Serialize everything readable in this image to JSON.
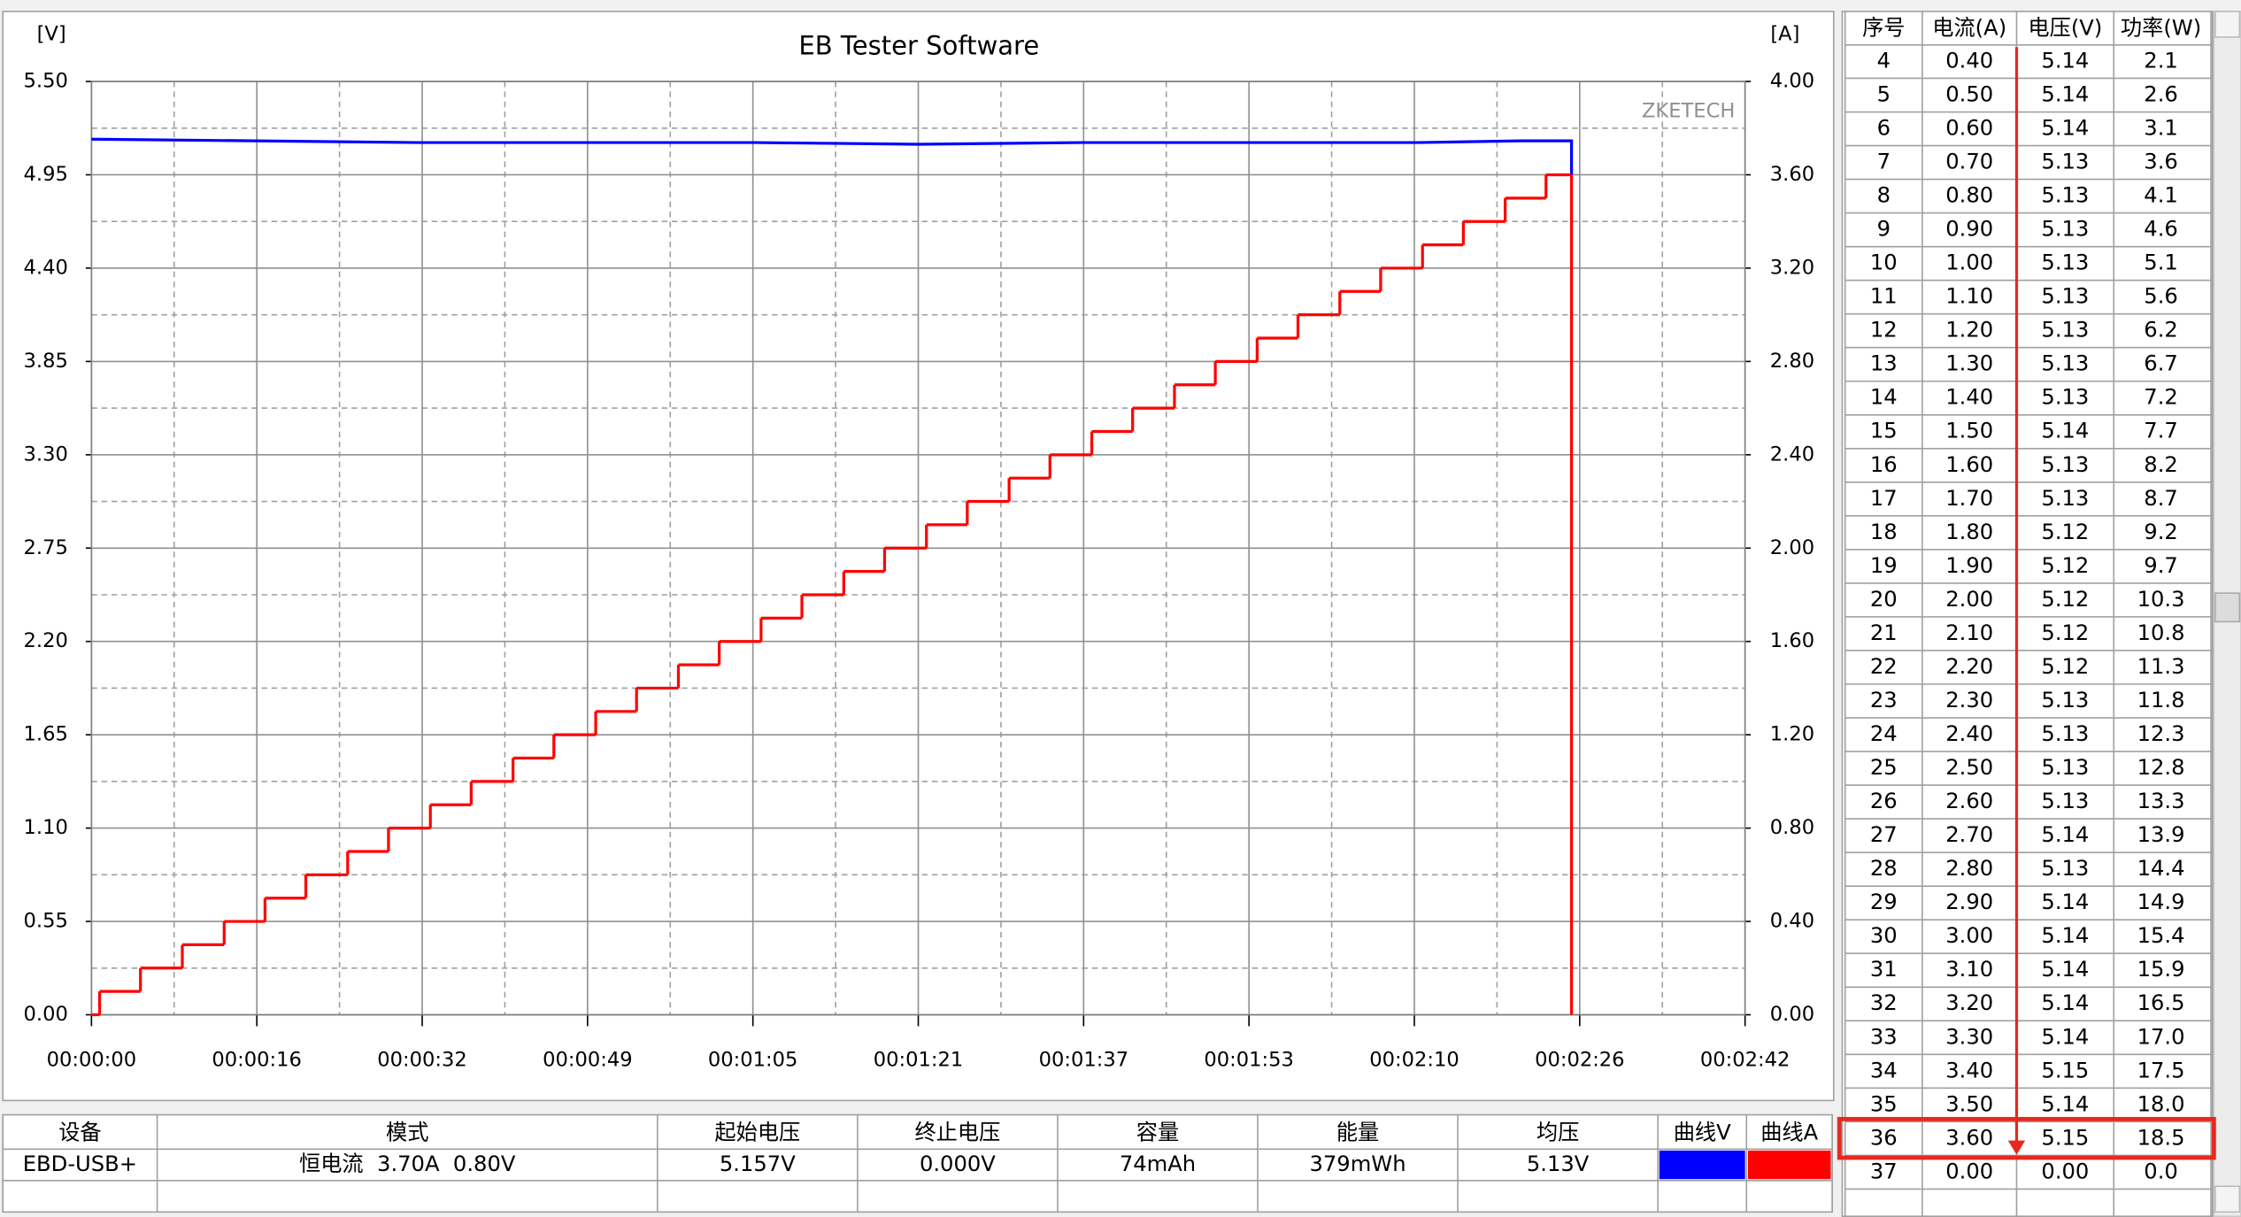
{
  "chart_data": {
    "type": "line",
    "title": "EB Tester Software",
    "y_label": "[V]",
    "y2_label": "[A]",
    "watermark": "ZKETECH",
    "xlim": [
      0,
      162
    ],
    "xticks": [
      {
        "value": 0,
        "label": "00:00:00"
      },
      {
        "value": 16.2,
        "label": "00:00:16"
      },
      {
        "value": 32.4,
        "label": "00:00:32"
      },
      {
        "value": 48.6,
        "label": "00:00:49"
      },
      {
        "value": 64.8,
        "label": "00:01:05"
      },
      {
        "value": 81,
        "label": "00:01:21"
      },
      {
        "value": 97.2,
        "label": "00:01:37"
      },
      {
        "value": 113.4,
        "label": "00:01:53"
      },
      {
        "value": 129.6,
        "label": "00:02:10"
      },
      {
        "value": 145.8,
        "label": "00:02:26"
      },
      {
        "value": 162,
        "label": "00:02:42"
      }
    ],
    "ylim": [
      0,
      5.5
    ],
    "yticks": [
      {
        "value": 0,
        "label": "0.00"
      },
      {
        "value": 0.55,
        "label": "0.55"
      },
      {
        "value": 1.1,
        "label": "1.10"
      },
      {
        "value": 1.65,
        "label": "1.65"
      },
      {
        "value": 2.2,
        "label": "2.20"
      },
      {
        "value": 2.75,
        "label": "2.75"
      },
      {
        "value": 3.3,
        "label": "3.30"
      },
      {
        "value": 3.85,
        "label": "3.85"
      },
      {
        "value": 4.4,
        "label": "4.40"
      },
      {
        "value": 4.95,
        "label": "4.95"
      },
      {
        "value": 5.5,
        "label": "5.50"
      }
    ],
    "y2lim": [
      0,
      4
    ],
    "y2ticks": [
      {
        "value": 0,
        "label": "0.00"
      },
      {
        "value": 0.4,
        "label": "0.40"
      },
      {
        "value": 0.8,
        "label": "0.80"
      },
      {
        "value": 1.2,
        "label": "1.20"
      },
      {
        "value": 1.6,
        "label": "1.60"
      },
      {
        "value": 2,
        "label": "2.00"
      },
      {
        "value": 2.4,
        "label": "2.40"
      },
      {
        "value": 2.8,
        "label": "2.80"
      },
      {
        "value": 3.2,
        "label": "3.20"
      },
      {
        "value": 3.6,
        "label": "3.60"
      },
      {
        "value": 4,
        "label": "4.00"
      }
    ],
    "grid": true,
    "series": [
      {
        "name": "曲线V",
        "color": "#0000ff",
        "axis": "y",
        "x": [
          0,
          16,
          32,
          49,
          65,
          81,
          97,
          113,
          130,
          140,
          145,
          145
        ],
        "values": [
          5.16,
          5.15,
          5.14,
          5.14,
          5.14,
          5.13,
          5.14,
          5.14,
          5.14,
          5.15,
          5.15,
          4.95
        ]
      },
      {
        "name": "曲线A",
        "color": "#ff0000",
        "axis": "y2",
        "drawstyle": "steps-post",
        "x": [
          0,
          0.8,
          4.8,
          8.9,
          13.0,
          17.0,
          21.0,
          25.1,
          29.1,
          33.2,
          37.2,
          41.3,
          45.3,
          49.4,
          53.4,
          57.5,
          61.5,
          65.6,
          69.6,
          73.7,
          77.7,
          81.8,
          85.8,
          89.9,
          93.9,
          98.0,
          102.0,
          106.1,
          110.1,
          114.2,
          118.2,
          122.3,
          126.3,
          130.4,
          134.4,
          138.5,
          142.5,
          145.0
        ],
        "values": [
          0,
          0.1,
          0.2,
          0.3,
          0.4,
          0.5,
          0.6,
          0.7,
          0.8,
          0.9,
          1.0,
          1.1,
          1.2,
          1.3,
          1.4,
          1.5,
          1.6,
          1.7,
          1.8,
          1.9,
          2.0,
          2.1,
          2.2,
          2.3,
          2.4,
          2.5,
          2.6,
          2.7,
          2.8,
          2.9,
          3.0,
          3.1,
          3.2,
          3.3,
          3.4,
          3.5,
          3.6,
          0
        ]
      }
    ]
  },
  "readings": {
    "headers": [
      "序号",
      "电流(A)",
      "电压(V)",
      "功率(W)"
    ],
    "rows": [
      [
        "4",
        "0.40",
        "5.14",
        "2.1"
      ],
      [
        "5",
        "0.50",
        "5.14",
        "2.6"
      ],
      [
        "6",
        "0.60",
        "5.14",
        "3.1"
      ],
      [
        "7",
        "0.70",
        "5.13",
        "3.6"
      ],
      [
        "8",
        "0.80",
        "5.13",
        "4.1"
      ],
      [
        "9",
        "0.90",
        "5.13",
        "4.6"
      ],
      [
        "10",
        "1.00",
        "5.13",
        "5.1"
      ],
      [
        "11",
        "1.10",
        "5.13",
        "5.6"
      ],
      [
        "12",
        "1.20",
        "5.13",
        "6.2"
      ],
      [
        "13",
        "1.30",
        "5.13",
        "6.7"
      ],
      [
        "14",
        "1.40",
        "5.13",
        "7.2"
      ],
      [
        "15",
        "1.50",
        "5.14",
        "7.7"
      ],
      [
        "16",
        "1.60",
        "5.13",
        "8.2"
      ],
      [
        "17",
        "1.70",
        "5.13",
        "8.7"
      ],
      [
        "18",
        "1.80",
        "5.12",
        "9.2"
      ],
      [
        "19",
        "1.90",
        "5.12",
        "9.7"
      ],
      [
        "20",
        "2.00",
        "5.12",
        "10.3"
      ],
      [
        "21",
        "2.10",
        "5.12",
        "10.8"
      ],
      [
        "22",
        "2.20",
        "5.12",
        "11.3"
      ],
      [
        "23",
        "2.30",
        "5.13",
        "11.8"
      ],
      [
        "24",
        "2.40",
        "5.13",
        "12.3"
      ],
      [
        "25",
        "2.50",
        "5.13",
        "12.8"
      ],
      [
        "26",
        "2.60",
        "5.13",
        "13.3"
      ],
      [
        "27",
        "2.70",
        "5.14",
        "13.9"
      ],
      [
        "28",
        "2.80",
        "5.13",
        "14.4"
      ],
      [
        "29",
        "2.90",
        "5.14",
        "14.9"
      ],
      [
        "30",
        "3.00",
        "5.14",
        "15.4"
      ],
      [
        "31",
        "3.10",
        "5.14",
        "15.9"
      ],
      [
        "32",
        "3.20",
        "5.14",
        "16.5"
      ],
      [
        "33",
        "3.30",
        "5.14",
        "17.0"
      ],
      [
        "34",
        "3.40",
        "5.15",
        "17.5"
      ],
      [
        "35",
        "3.50",
        "5.14",
        "18.0"
      ],
      [
        "36",
        "3.60",
        "5.15",
        "18.5"
      ],
      [
        "37",
        "0.00",
        "0.00",
        "0.0"
      ]
    ]
  },
  "summary": {
    "headers": [
      "设备",
      "模式",
      "起始电压",
      "终止电压",
      "容量",
      "能量",
      "均压"
    ],
    "row": [
      "EBD-USB+",
      "恒电流  3.70A  0.80V",
      "5.157V",
      "0.000V",
      "74mAh",
      "379mWh",
      "5.13V"
    ]
  }
}
